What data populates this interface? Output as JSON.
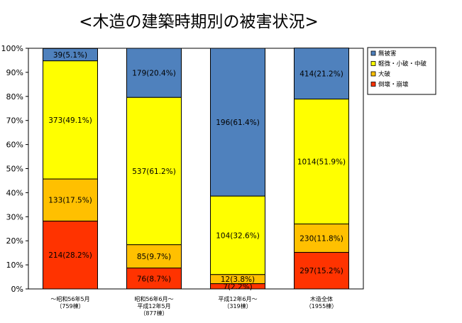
{
  "chart_data": {
    "type": "bar",
    "stacked": "percent",
    "title": "<木造の建築時期別の被害状況>",
    "ylim": [
      0,
      100
    ],
    "yticks": [
      "0%",
      "10%",
      "20%",
      "30%",
      "40%",
      "50%",
      "60%",
      "70%",
      "80%",
      "90%",
      "100%"
    ],
    "grid": false,
    "legend_position": "right",
    "categories": [
      [
        "～昭和56年5月",
        "（759棟）"
      ],
      [
        "昭和56年6月～",
        "平成12年5月",
        "（877棟）"
      ],
      [
        "平成12年6月～",
        "（319棟）"
      ],
      [
        "木造全体",
        "（1955棟）"
      ]
    ],
    "series": [
      {
        "name": "倒壊・崩壊",
        "color": "#ff3300",
        "values": [
          28.2,
          8.7,
          2.2,
          15.2
        ],
        "labels": [
          "214(28.2%)",
          "76(8.7%)",
          "7(2.2%)",
          "297(15.2%)"
        ]
      },
      {
        "name": "大破",
        "color": "#ffc000",
        "values": [
          17.5,
          9.7,
          3.8,
          11.8
        ],
        "labels": [
          "133(17.5%)",
          "85(9.7%)",
          "12(3.8%)",
          "230(11.8%)"
        ]
      },
      {
        "name": "軽微・小破・中破",
        "color": "#ffff00",
        "values": [
          49.1,
          61.2,
          32.6,
          51.9
        ],
        "labels": [
          "373(49.1%)",
          "537(61.2%)",
          "104(32.6%)",
          "1014(51.9%)"
        ]
      },
      {
        "name": "無被害",
        "color": "#4f81bd",
        "values": [
          5.1,
          20.4,
          61.4,
          21.2
        ],
        "labels": [
          "39(5.1%)",
          "179(20.4%)",
          "196(61.4%)",
          "414(21.2%)"
        ]
      }
    ],
    "legend_order": [
      "無被害",
      "軽微・小破・中破",
      "大破",
      "倒壊・崩壊"
    ]
  }
}
